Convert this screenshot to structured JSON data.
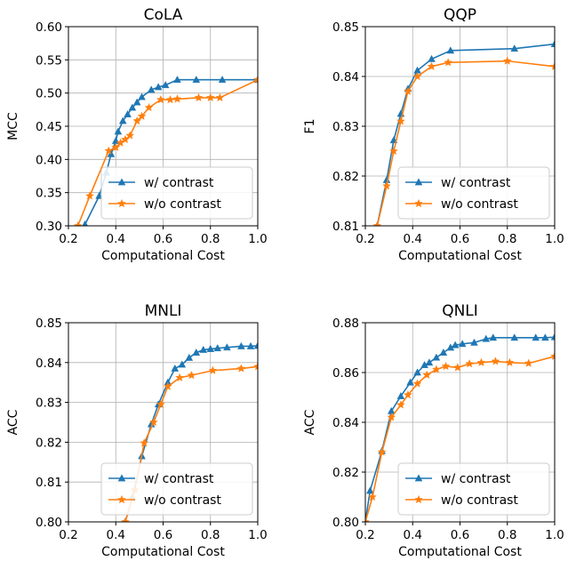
{
  "colors": {
    "with_contrast": "#1f77b4",
    "without_contrast": "#ff7f0e"
  },
  "chart_data": [
    {
      "type": "line",
      "title": "CoLA",
      "xlabel": "Computational Cost",
      "ylabel": "MCC",
      "xlim": [
        0.2,
        1.0
      ],
      "ylim": [
        0.3,
        0.6
      ],
      "xticks": [
        "0.2",
        "0.4",
        "0.6",
        "0.8",
        "1.0"
      ],
      "yticks": [
        "0.30",
        "0.35",
        "0.40",
        "0.45",
        "0.50",
        "0.55",
        "0.60"
      ],
      "grid": true,
      "legend_position": "lower-right",
      "series": [
        {
          "name": "w/ contrast",
          "marker": "triangle",
          "x": [
            0.27,
            0.33,
            0.36,
            0.38,
            0.4,
            0.41,
            0.43,
            0.45,
            0.47,
            0.49,
            0.51,
            0.55,
            0.58,
            0.61,
            0.66,
            0.74,
            0.85,
            1.0
          ],
          "y": [
            0.302,
            0.345,
            0.38,
            0.408,
            0.428,
            0.442,
            0.458,
            0.468,
            0.478,
            0.486,
            0.494,
            0.505,
            0.509,
            0.512,
            0.52,
            0.52,
            0.52,
            0.52
          ]
        },
        {
          "name": "w/o contrast",
          "marker": "star",
          "x": [
            0.24,
            0.29,
            0.37,
            0.4,
            0.42,
            0.44,
            0.46,
            0.49,
            0.51,
            0.54,
            0.59,
            0.63,
            0.66,
            0.75,
            0.8,
            0.84,
            1.0
          ],
          "y": [
            0.3,
            0.345,
            0.413,
            0.418,
            0.425,
            0.43,
            0.436,
            0.458,
            0.465,
            0.478,
            0.49,
            0.49,
            0.491,
            0.493,
            0.493,
            0.493,
            0.52
          ]
        }
      ]
    },
    {
      "type": "line",
      "title": "QQP",
      "xlabel": "Computational Cost",
      "ylabel": "F1",
      "xlim": [
        0.2,
        1.0
      ],
      "ylim": [
        0.81,
        0.85
      ],
      "xticks": [
        "0.2",
        "0.4",
        "0.6",
        "0.8",
        "1.0"
      ],
      "yticks": [
        "0.81",
        "0.82",
        "0.83",
        "0.84",
        "0.85"
      ],
      "grid": true,
      "legend_position": "lower-right",
      "series": [
        {
          "name": "w/ contrast",
          "marker": "triangle",
          "x": [
            0.25,
            0.29,
            0.32,
            0.35,
            0.38,
            0.42,
            0.48,
            0.56,
            0.83,
            1.0
          ],
          "y": [
            0.81,
            0.8192,
            0.8272,
            0.8325,
            0.8375,
            0.8412,
            0.8435,
            0.8452,
            0.8456,
            0.8465
          ]
        },
        {
          "name": "w/o contrast",
          "marker": "star",
          "x": [
            0.25,
            0.29,
            0.32,
            0.35,
            0.38,
            0.42,
            0.48,
            0.55,
            0.8,
            1.0
          ],
          "y": [
            0.81,
            0.818,
            0.825,
            0.831,
            0.837,
            0.84,
            0.842,
            0.8428,
            0.8431,
            0.842
          ]
        }
      ]
    },
    {
      "type": "line",
      "title": "MNLI",
      "xlabel": "Computational Cost",
      "ylabel": "ACC",
      "xlim": [
        0.2,
        1.0
      ],
      "ylim": [
        0.8,
        0.85
      ],
      "xticks": [
        "0.2",
        "0.4",
        "0.6",
        "0.8",
        "1.0"
      ],
      "yticks": [
        "0.80",
        "0.81",
        "0.82",
        "0.83",
        "0.84",
        "0.85"
      ],
      "grid": true,
      "legend_position": "lower-right",
      "series": [
        {
          "name": "w/ contrast",
          "marker": "triangle",
          "x": [
            0.44,
            0.47,
            0.51,
            0.55,
            0.58,
            0.62,
            0.65,
            0.68,
            0.71,
            0.74,
            0.77,
            0.8,
            0.83,
            0.87,
            0.93,
            0.97,
            1.0
          ],
          "y": [
            0.8,
            0.806,
            0.8165,
            0.8245,
            0.8295,
            0.835,
            0.8385,
            0.8395,
            0.8412,
            0.8425,
            0.8432,
            0.8434,
            0.8436,
            0.8438,
            0.8441,
            0.8441,
            0.8442
          ]
        },
        {
          "name": "w/o contrast",
          "marker": "star",
          "x": [
            0.44,
            0.48,
            0.52,
            0.56,
            0.59,
            0.62,
            0.67,
            0.72,
            0.81,
            0.93,
            1.0
          ],
          "y": [
            0.8,
            0.808,
            0.8198,
            0.825,
            0.8295,
            0.834,
            0.8362,
            0.8368,
            0.838,
            0.8385,
            0.839
          ]
        }
      ]
    },
    {
      "type": "line",
      "title": "QNLI",
      "xlabel": "Computational Cost",
      "ylabel": "ACC",
      "xlim": [
        0.2,
        1.0
      ],
      "ylim": [
        0.8,
        0.88
      ],
      "xticks": [
        "0.2",
        "0.4",
        "0.6",
        "0.8",
        "1.0"
      ],
      "yticks": [
        "0.80",
        "0.82",
        "0.84",
        "0.86",
        "0.88"
      ],
      "grid": true,
      "legend_position": "lower-right",
      "series": [
        {
          "name": "w/ contrast",
          "marker": "triangle",
          "x": [
            0.2,
            0.22,
            0.27,
            0.31,
            0.35,
            0.39,
            0.42,
            0.45,
            0.47,
            0.5,
            0.53,
            0.56,
            0.58,
            0.61,
            0.66,
            0.71,
            0.74,
            0.83,
            0.92,
            0.96,
            1.0
          ],
          "y": [
            0.8,
            0.8125,
            0.8285,
            0.8445,
            0.8505,
            0.856,
            0.86,
            0.863,
            0.864,
            0.866,
            0.868,
            0.87,
            0.871,
            0.8715,
            0.872,
            0.8735,
            0.874,
            0.874,
            0.874,
            0.874,
            0.8742
          ]
        },
        {
          "name": "w/o contrast",
          "marker": "star",
          "x": [
            0.2,
            0.23,
            0.27,
            0.31,
            0.35,
            0.38,
            0.42,
            0.46,
            0.5,
            0.54,
            0.59,
            0.64,
            0.69,
            0.75,
            0.81,
            0.89,
            1.0
          ],
          "y": [
            0.8,
            0.81,
            0.828,
            0.842,
            0.847,
            0.851,
            0.8555,
            0.859,
            0.8612,
            0.8625,
            0.862,
            0.8635,
            0.864,
            0.8645,
            0.864,
            0.8637,
            0.8665
          ]
        }
      ]
    }
  ]
}
